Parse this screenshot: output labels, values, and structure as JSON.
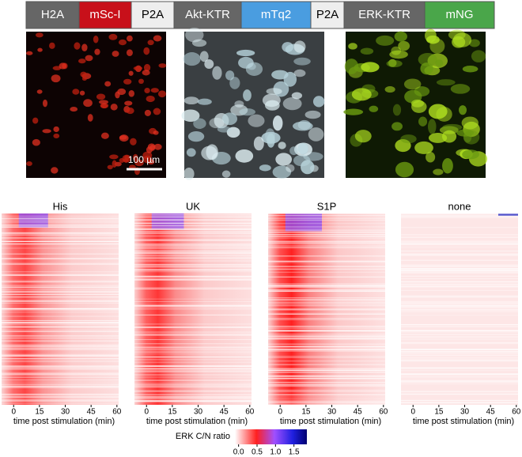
{
  "construct": [
    "H2A",
    "mSc-I",
    "P2A",
    "Akt-KTR",
    "mTq2",
    "P2A",
    "ERK-KTR",
    "mNG"
  ],
  "images": {
    "scale_bar": "100 µm"
  },
  "heatmaps": {
    "panels": [
      {
        "title": "His"
      },
      {
        "title": "UK"
      },
      {
        "title": "S1P"
      },
      {
        "title": "none"
      }
    ],
    "x_axis": {
      "label": "time post stimulation (min)",
      "lim": [
        -7,
        61
      ],
      "ticks": [
        0,
        15,
        30,
        45,
        60
      ]
    }
  },
  "colorbar": {
    "label": "ERK C/N ratio",
    "lim": [
      -0.1,
      1.85
    ],
    "ticks": [
      {
        "value": 0,
        "label": "0.0"
      },
      {
        "value": 0.5,
        "label": "0.5"
      },
      {
        "value": 1,
        "label": "1.0"
      },
      {
        "value": 1.5,
        "label": "1.5"
      }
    ]
  }
}
